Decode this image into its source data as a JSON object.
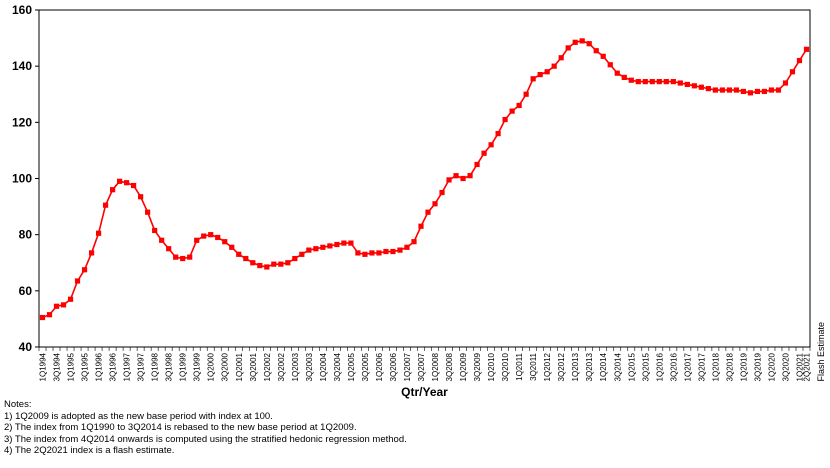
{
  "chart_data": {
    "type": "line",
    "title": "",
    "xlabel": "Qtr/Year",
    "ylabel": "",
    "ylim": [
      40,
      160
    ],
    "yticks": [
      40,
      60,
      80,
      100,
      120,
      140,
      160
    ],
    "grid": false,
    "legend": "none",
    "line_color": "#ff0000",
    "marker": "square",
    "flash_label": "Flash Estimate",
    "tick_labels": [
      "1Q1994",
      "3Q1994",
      "1Q1995",
      "3Q1995",
      "1Q1996",
      "3Q1996",
      "1Q1997",
      "3Q1997",
      "1Q1998",
      "3Q1998",
      "1Q1999",
      "3Q1999",
      "1Q2000",
      "3Q2000",
      "1Q2001",
      "3Q2001",
      "1Q2002",
      "3Q2002",
      "1Q2003",
      "3Q2003",
      "1Q2004",
      "3Q2004",
      "1Q2005",
      "3Q2005",
      "1Q2006",
      "3Q2006",
      "1Q2007",
      "3Q2007",
      "1Q2008",
      "3Q2008",
      "1Q2009",
      "3Q2009",
      "1Q2010",
      "3Q2010",
      "1Q2011",
      "3Q2011",
      "1Q2012",
      "3Q2012",
      "1Q2013",
      "3Q2013",
      "1Q2014",
      "3Q2014",
      "1Q2015",
      "3Q2015",
      "1Q2016",
      "3Q2016",
      "1Q2017",
      "3Q2017",
      "1Q2018",
      "3Q2018",
      "1Q2019",
      "3Q2019",
      "1Q2020",
      "3Q2020",
      "1Q2021",
      "2Q2021"
    ],
    "x": [
      "1Q1994",
      "2Q1994",
      "3Q1994",
      "4Q1994",
      "1Q1995",
      "2Q1995",
      "3Q1995",
      "4Q1995",
      "1Q1996",
      "2Q1996",
      "3Q1996",
      "4Q1996",
      "1Q1997",
      "2Q1997",
      "3Q1997",
      "4Q1997",
      "1Q1998",
      "2Q1998",
      "3Q1998",
      "4Q1998",
      "1Q1999",
      "2Q1999",
      "3Q1999",
      "4Q1999",
      "1Q2000",
      "2Q2000",
      "3Q2000",
      "4Q2000",
      "1Q2001",
      "2Q2001",
      "3Q2001",
      "4Q2001",
      "1Q2002",
      "2Q2002",
      "3Q2002",
      "4Q2002",
      "1Q2003",
      "2Q2003",
      "3Q2003",
      "4Q2003",
      "1Q2004",
      "2Q2004",
      "3Q2004",
      "4Q2004",
      "1Q2005",
      "2Q2005",
      "3Q2005",
      "4Q2005",
      "1Q2006",
      "2Q2006",
      "3Q2006",
      "4Q2006",
      "1Q2007",
      "2Q2007",
      "3Q2007",
      "4Q2007",
      "1Q2008",
      "2Q2008",
      "3Q2008",
      "4Q2008",
      "1Q2009",
      "2Q2009",
      "3Q2009",
      "4Q2009",
      "1Q2010",
      "2Q2010",
      "3Q2010",
      "4Q2010",
      "1Q2011",
      "2Q2011",
      "3Q2011",
      "4Q2011",
      "1Q2012",
      "2Q2012",
      "3Q2012",
      "4Q2012",
      "1Q2013",
      "2Q2013",
      "3Q2013",
      "4Q2013",
      "1Q2014",
      "2Q2014",
      "3Q2014",
      "4Q2014",
      "1Q2015",
      "2Q2015",
      "3Q2015",
      "4Q2015",
      "1Q2016",
      "2Q2016",
      "3Q2016",
      "4Q2016",
      "1Q2017",
      "2Q2017",
      "3Q2017",
      "4Q2017",
      "1Q2018",
      "2Q2018",
      "3Q2018",
      "4Q2018",
      "1Q2019",
      "2Q2019",
      "3Q2019",
      "4Q2019",
      "1Q2020",
      "2Q2020",
      "3Q2020",
      "4Q2020",
      "1Q2021",
      "2Q2021"
    ],
    "series": [
      {
        "values": [
          50.5,
          51.5,
          54.5,
          55,
          57,
          63.5,
          67.5,
          73.5,
          80.5,
          90.5,
          96,
          99,
          98.5,
          97.5,
          93.5,
          88,
          81.5,
          78,
          75,
          72,
          71.5,
          72,
          78,
          79.5,
          80,
          79,
          77.5,
          75.5,
          73,
          71.5,
          70,
          69,
          68.5,
          69.5,
          69.5,
          70,
          71.5,
          73,
          74.5,
          75,
          75.5,
          76,
          76.5,
          77,
          77,
          73.5,
          73,
          73.5,
          73.5,
          74,
          74,
          74.5,
          75.5,
          77.5,
          83,
          88,
          91,
          95,
          99.5,
          101,
          100,
          101,
          105,
          109,
          112,
          116,
          121,
          124,
          126,
          130,
          135.5,
          137,
          138,
          140,
          143,
          146.5,
          148.5,
          149,
          148,
          145.5,
          143.5,
          140.5,
          137.5,
          136,
          135,
          134.5,
          134.5,
          134.5,
          134.5,
          134.5,
          134.5,
          134,
          133.5,
          133,
          132.5,
          132,
          131.5,
          131.5,
          131.5,
          131.5,
          131,
          130.5,
          131,
          131,
          131.5,
          131.5,
          134,
          138,
          142,
          146
        ]
      }
    ]
  },
  "notes": {
    "heading": "Notes:",
    "items": [
      "1) 1Q2009 is adopted as the new base period with index at 100.",
      "2) The index from 1Q1990 to 3Q2014 is rebased to the new base period at 1Q2009.",
      "3) The index from 4Q2014 onwards is computed using the stratified hedonic regression method.",
      "4) The 2Q2021 index is a flash estimate."
    ]
  }
}
